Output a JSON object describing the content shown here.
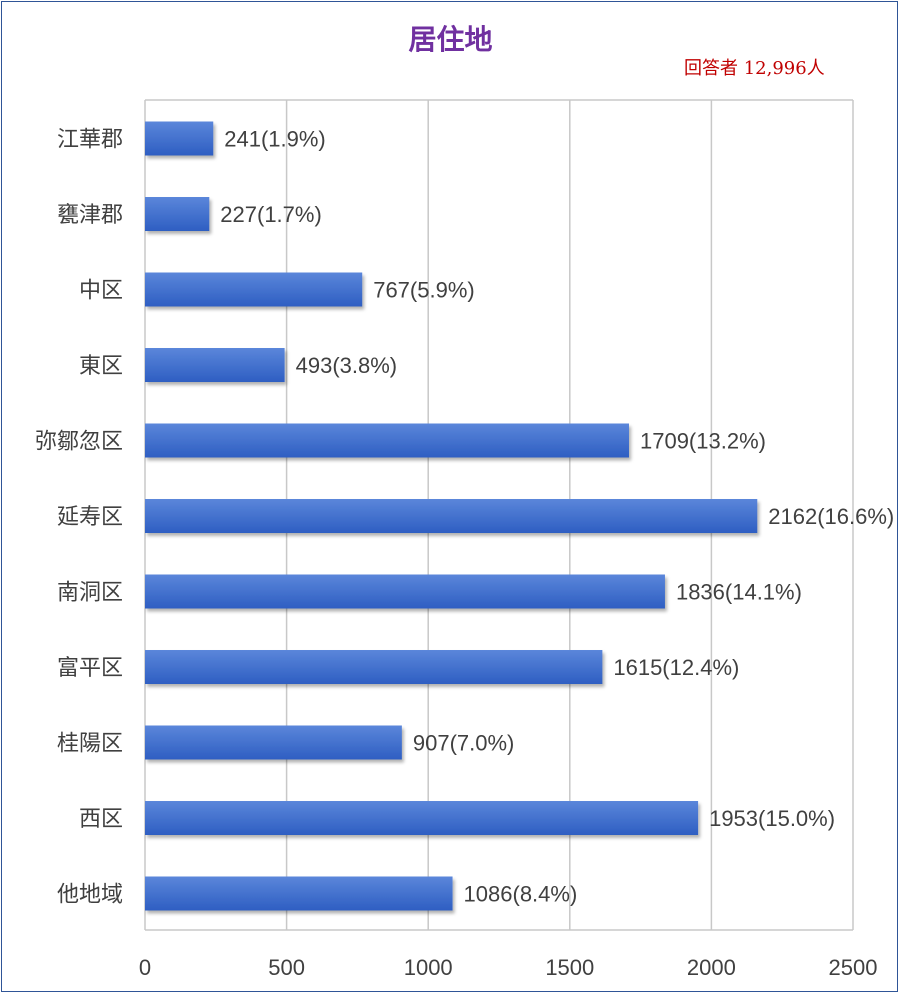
{
  "title": "居住地",
  "respondents": "回答者 12,996人",
  "colors": {
    "bar_top": "#5b86da",
    "bar_bottom": "#2e5ec2",
    "grid": "#c8c8c8",
    "title": "#7030a0",
    "respondents": "#c00000"
  },
  "chart_data": {
    "type": "bar",
    "orientation": "horizontal",
    "title": "居住地",
    "categories": [
      "江華郡",
      "甕津郡",
      "中区",
      "東区",
      "弥鄒忽区",
      "延寿区",
      "南洞区",
      "富平区",
      "桂陽区",
      "西区",
      "他地域"
    ],
    "values": [
      241,
      227,
      767,
      493,
      1709,
      2162,
      1836,
      1615,
      907,
      1953,
      1086
    ],
    "data_labels": [
      "241(1.9%)",
      "227(1.7%)",
      "767(5.9%)",
      "493(3.8%)",
      "1709(13.2%)",
      "2162(16.6%)",
      "1836(14.1%)",
      "1615(12.4%)",
      "907(7.0%)",
      "1953(15.0%)",
      "1086(8.4%)"
    ],
    "xlim": [
      0,
      2500
    ],
    "xticks": [
      0,
      500,
      1000,
      1500,
      2000,
      2500
    ],
    "xtick_labels": [
      "0",
      "500",
      "1000",
      "1500",
      "2000",
      "2500"
    ],
    "grid": true,
    "legend": "none"
  }
}
